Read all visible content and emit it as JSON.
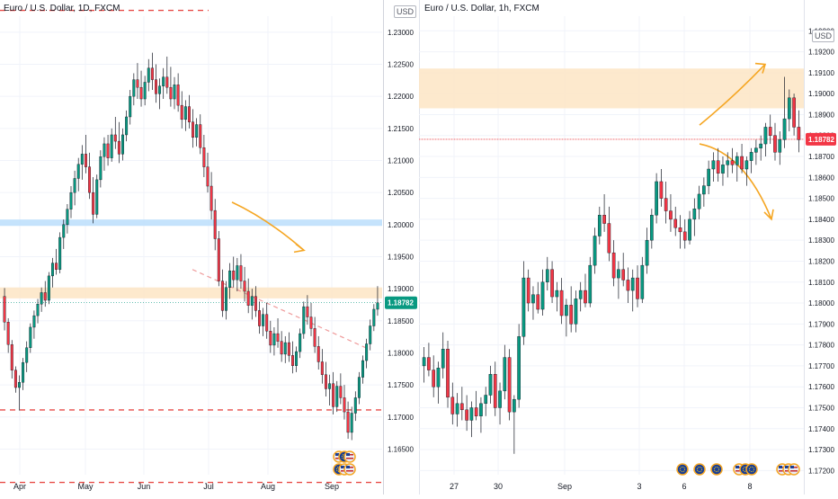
{
  "chart_data": [
    {
      "type": "candlestick",
      "title": "Euro / U.S. Dollar, 1D, FXCM",
      "currency": "USD",
      "x_ticks": [
        "Apr",
        "May",
        "Jun",
        "Jul",
        "Aug",
        "Sep"
      ],
      "y_ticks": [
        "1.23000",
        "1.22500",
        "1.22000",
        "1.21500",
        "1.21000",
        "1.20500",
        "1.20000",
        "1.19500",
        "1.19000",
        "1.18500",
        "1.18000",
        "1.17500",
        "1.17000",
        "1.16500"
      ],
      "ylim": [
        1.161,
        1.2325
      ],
      "last_price": "1.18782",
      "last_price_value": 1.18782,
      "zones": [
        {
          "from": 1.1885,
          "to": 1.1902,
          "color": "#fde5c4"
        },
        {
          "from": 1.1998,
          "to": 1.2008,
          "color": "#bbdefb"
        }
      ],
      "dashed_levels": [
        {
          "value": 1.2334,
          "color": "#e53935"
        },
        {
          "value": 1.1711,
          "color": "#e53935"
        },
        {
          "value": 1.1598,
          "color": "#e53935"
        }
      ],
      "trendline": {
        "start": [
          "Jun",
          1.193
        ],
        "end": [
          "Sep",
          1.1806
        ],
        "color": "#ef9a9a"
      },
      "arrow": {
        "from": 1.2035,
        "to": 1.196,
        "color": "#f5a623"
      },
      "ohlc": [
        [
          1.1888,
          1.1901,
          1.1835,
          1.1848
        ],
        [
          1.1848,
          1.1854,
          1.18,
          1.1813
        ],
        [
          1.1813,
          1.182,
          1.176,
          1.1773
        ],
        [
          1.1773,
          1.1779,
          1.1738,
          1.1746
        ],
        [
          1.1746,
          1.1765,
          1.171,
          1.1754
        ],
        [
          1.1754,
          1.1792,
          1.1742,
          1.1785
        ],
        [
          1.1785,
          1.1818,
          1.177,
          1.1808
        ],
        [
          1.1808,
          1.1846,
          1.18,
          1.184
        ],
        [
          1.184,
          1.1866,
          1.1822,
          1.1858
        ],
        [
          1.1858,
          1.1884,
          1.1846,
          1.1876
        ],
        [
          1.1876,
          1.1902,
          1.1864,
          1.1894
        ],
        [
          1.1894,
          1.1912,
          1.1872,
          1.1882
        ],
        [
          1.1882,
          1.1926,
          1.1876,
          1.192
        ],
        [
          1.192,
          1.1948,
          1.1902,
          1.194
        ],
        [
          1.194,
          1.1962,
          1.1922,
          1.193
        ],
        [
          1.193,
          1.1988,
          1.1924,
          1.198
        ],
        [
          1.198,
          1.2008,
          1.1962,
          1.2
        ],
        [
          1.2,
          1.2032,
          1.1986,
          1.2024
        ],
        [
          1.2024,
          1.206,
          1.201,
          1.205
        ],
        [
          1.205,
          1.2084,
          1.203,
          1.2072
        ],
        [
          1.2072,
          1.2104,
          1.2052,
          1.2094
        ],
        [
          1.2094,
          1.2124,
          1.207,
          1.211
        ],
        [
          1.211,
          1.214,
          1.208,
          1.209
        ],
        [
          1.209,
          1.2112,
          1.204,
          1.205
        ],
        [
          1.205,
          1.2074,
          1.2002,
          1.2016
        ],
        [
          1.2016,
          1.2078,
          1.201,
          1.207
        ],
        [
          1.207,
          1.2116,
          1.2058,
          1.2106
        ],
        [
          1.2106,
          1.2136,
          1.2084,
          1.2126
        ],
        [
          1.2126,
          1.214,
          1.2092,
          1.2104
        ],
        [
          1.2104,
          1.215,
          1.2098,
          1.214
        ],
        [
          1.214,
          1.2168,
          1.2118,
          1.213
        ],
        [
          1.213,
          1.216,
          1.2096,
          1.211
        ],
        [
          1.211,
          1.215,
          1.21,
          1.214
        ],
        [
          1.214,
          1.2178,
          1.213,
          1.2168
        ],
        [
          1.2168,
          1.221,
          1.2156,
          1.22
        ],
        [
          1.22,
          1.2236,
          1.2186,
          1.2226
        ],
        [
          1.2226,
          1.2252,
          1.2196,
          1.2214
        ],
        [
          1.2214,
          1.224,
          1.2184,
          1.2196
        ],
        [
          1.2196,
          1.2232,
          1.2186,
          1.2222
        ],
        [
          1.2222,
          1.2258,
          1.2208,
          1.2244
        ],
        [
          1.2244,
          1.2268,
          1.221,
          1.2226
        ],
        [
          1.2226,
          1.225,
          1.219,
          1.2204
        ],
        [
          1.2204,
          1.2228,
          1.218,
          1.2216
        ],
        [
          1.2216,
          1.2244,
          1.2196,
          1.223
        ],
        [
          1.223,
          1.2262,
          1.2204,
          1.2214
        ],
        [
          1.2214,
          1.2246,
          1.2184,
          1.2196
        ],
        [
          1.2196,
          1.223,
          1.218,
          1.2218
        ],
        [
          1.2218,
          1.2236,
          1.2176,
          1.2186
        ],
        [
          1.2186,
          1.2208,
          1.215,
          1.2164
        ],
        [
          1.2164,
          1.2194,
          1.2146,
          1.2184
        ],
        [
          1.2184,
          1.2202,
          1.215,
          1.216
        ],
        [
          1.216,
          1.218,
          1.212,
          1.2136
        ],
        [
          1.2136,
          1.2166,
          1.2122,
          1.2156
        ],
        [
          1.2156,
          1.2172,
          1.211,
          1.212
        ],
        [
          1.212,
          1.214,
          1.2074,
          1.209
        ],
        [
          1.209,
          1.2112,
          1.205,
          1.206
        ],
        [
          1.206,
          1.2082,
          1.2008,
          1.2022
        ],
        [
          1.2022,
          1.204,
          1.196,
          1.1978
        ],
        [
          1.1978,
          1.199,
          1.1904,
          1.1912
        ],
        [
          1.1912,
          1.193,
          1.1856,
          1.1866
        ],
        [
          1.1866,
          1.1912,
          1.1852,
          1.1902
        ],
        [
          1.1902,
          1.194,
          1.1884,
          1.1928
        ],
        [
          1.1928,
          1.195,
          1.1902,
          1.1914
        ],
        [
          1.1914,
          1.1948,
          1.1896,
          1.1936
        ],
        [
          1.1936,
          1.1954,
          1.19,
          1.1912
        ],
        [
          1.1912,
          1.1934,
          1.188,
          1.1896
        ],
        [
          1.1896,
          1.1916,
          1.1862,
          1.1874
        ],
        [
          1.1874,
          1.19,
          1.1852,
          1.1888
        ],
        [
          1.1888,
          1.1904,
          1.1856,
          1.1866
        ],
        [
          1.1866,
          1.188,
          1.183,
          1.1842
        ],
        [
          1.1842,
          1.187,
          1.1826,
          1.186
        ],
        [
          1.186,
          1.1878,
          1.1822,
          1.1834
        ],
        [
          1.1834,
          1.185,
          1.18,
          1.1812
        ],
        [
          1.1812,
          1.184,
          1.1796,
          1.183
        ],
        [
          1.183,
          1.1854,
          1.1808,
          1.1818
        ],
        [
          1.1818,
          1.1834,
          1.1786,
          1.1798
        ],
        [
          1.1798,
          1.1826,
          1.1784,
          1.1816
        ],
        [
          1.1816,
          1.1832,
          1.1786,
          1.1796
        ],
        [
          1.1796,
          1.1818,
          1.1768,
          1.178
        ],
        [
          1.178,
          1.181,
          1.177,
          1.1802
        ],
        [
          1.1802,
          1.1838,
          1.1792,
          1.183
        ],
        [
          1.183,
          1.188,
          1.1822,
          1.1872
        ],
        [
          1.1872,
          1.189,
          1.1844,
          1.1856
        ],
        [
          1.1856,
          1.1878,
          1.1826,
          1.1838
        ],
        [
          1.1838,
          1.1856,
          1.18,
          1.181
        ],
        [
          1.181,
          1.1826,
          1.1774,
          1.1786
        ],
        [
          1.1786,
          1.1806,
          1.1752,
          1.1766
        ],
        [
          1.1766,
          1.1786,
          1.1732,
          1.1744
        ],
        [
          1.1744,
          1.1766,
          1.1718,
          1.1752
        ],
        [
          1.1752,
          1.177,
          1.1704,
          1.1716
        ],
        [
          1.1716,
          1.1756,
          1.1708,
          1.1748
        ],
        [
          1.1748,
          1.1768,
          1.172,
          1.173
        ],
        [
          1.173,
          1.175,
          1.1696,
          1.1708
        ],
        [
          1.1708,
          1.1724,
          1.1666,
          1.1676
        ],
        [
          1.1676,
          1.1716,
          1.1664,
          1.1706
        ],
        [
          1.1706,
          1.174,
          1.1694,
          1.173
        ],
        [
          1.173,
          1.177,
          1.172,
          1.1762
        ],
        [
          1.1762,
          1.1796,
          1.1752,
          1.1788
        ],
        [
          1.1788,
          1.1822,
          1.1776,
          1.1814
        ],
        [
          1.1814,
          1.1852,
          1.1804,
          1.1842
        ],
        [
          1.1842,
          1.1876,
          1.1834,
          1.1868
        ],
        [
          1.1868,
          1.1904,
          1.1858,
          1.1878
        ]
      ]
    },
    {
      "type": "candlestick",
      "title": "Euro / U.S. Dollar, 1h, FXCM",
      "currency": "USD",
      "x_ticks": [
        "27",
        "30",
        "Sep",
        "3",
        "6",
        "8"
      ],
      "y_ticks": [
        "1.19300",
        "1.19200",
        "1.19100",
        "1.19000",
        "1.18900",
        "1.18800",
        "1.18700",
        "1.18600",
        "1.18500",
        "1.18400",
        "1.18300",
        "1.18200",
        "1.18100",
        "1.18000",
        "1.17900",
        "1.17800",
        "1.17700",
        "1.17600",
        "1.17500",
        "1.17400",
        "1.17300",
        "1.17200"
      ],
      "ylim": [
        1.1718,
        1.1937
      ],
      "last_price": "1.18782",
      "last_price_value": 1.18782,
      "zones": [
        {
          "from": 1.1893,
          "to": 1.1912,
          "color": "#fde5c4"
        }
      ],
      "dashed_levels": [
        {
          "value": 1.18782,
          "color": "#ef9a9a"
        }
      ],
      "arrows": [
        {
          "from": 1.1885,
          "to": 1.1914,
          "color": "#f5a623"
        },
        {
          "from": 1.1876,
          "to": 1.184,
          "color": "#f5a623"
        }
      ],
      "ohlc": [
        [
          1.177,
          1.1779,
          1.1762,
          1.1774
        ],
        [
          1.1774,
          1.1781,
          1.1765,
          1.1768
        ],
        [
          1.1768,
          1.1775,
          1.1755,
          1.176
        ],
        [
          1.176,
          1.1772,
          1.1752,
          1.1769
        ],
        [
          1.1769,
          1.1786,
          1.1764,
          1.1778
        ],
        [
          1.1778,
          1.1782,
          1.175,
          1.1755
        ],
        [
          1.1755,
          1.1762,
          1.1742,
          1.1747
        ],
        [
          1.1747,
          1.1757,
          1.1741,
          1.1752
        ],
        [
          1.1752,
          1.176,
          1.1744,
          1.1749
        ],
        [
          1.1749,
          1.1756,
          1.1739,
          1.1744
        ],
        [
          1.1744,
          1.1753,
          1.1736,
          1.175
        ],
        [
          1.175,
          1.1758,
          1.1744,
          1.1746
        ],
        [
          1.1746,
          1.1755,
          1.1738,
          1.1752
        ],
        [
          1.1752,
          1.176,
          1.1746,
          1.1756
        ],
        [
          1.1756,
          1.177,
          1.1752,
          1.1766
        ],
        [
          1.1766,
          1.1772,
          1.1746,
          1.175
        ],
        [
          1.175,
          1.1762,
          1.1742,
          1.1758
        ],
        [
          1.1758,
          1.178,
          1.1754,
          1.1774
        ],
        [
          1.1774,
          1.1778,
          1.1744,
          1.1748
        ],
        [
          1.1748,
          1.1756,
          1.1728,
          1.1754
        ],
        [
          1.1754,
          1.179,
          1.175,
          1.1784
        ],
        [
          1.1784,
          1.182,
          1.178,
          1.1812
        ],
        [
          1.1812,
          1.1816,
          1.1796,
          1.18
        ],
        [
          1.18,
          1.1808,
          1.1792,
          1.1804
        ],
        [
          1.1804,
          1.181,
          1.1795,
          1.1797
        ],
        [
          1.1797,
          1.1816,
          1.1794,
          1.181
        ],
        [
          1.181,
          1.1822,
          1.1806,
          1.1816
        ],
        [
          1.1816,
          1.182,
          1.18,
          1.1803
        ],
        [
          1.1803,
          1.181,
          1.1796,
          1.1806
        ],
        [
          1.1806,
          1.1812,
          1.179,
          1.1794
        ],
        [
          1.1794,
          1.1802,
          1.1784,
          1.1799
        ],
        [
          1.1799,
          1.1808,
          1.1786,
          1.179
        ],
        [
          1.179,
          1.1806,
          1.1786,
          1.1802
        ],
        [
          1.1802,
          1.181,
          1.1796,
          1.1806
        ],
        [
          1.1806,
          1.1814,
          1.1798,
          1.18
        ],
        [
          1.18,
          1.1822,
          1.1798,
          1.1818
        ],
        [
          1.1818,
          1.1836,
          1.1814,
          1.1832
        ],
        [
          1.1832,
          1.1846,
          1.1828,
          1.1842
        ],
        [
          1.1842,
          1.1852,
          1.1834,
          1.1838
        ],
        [
          1.1838,
          1.1846,
          1.182,
          1.1824
        ],
        [
          1.1824,
          1.183,
          1.1808,
          1.1812
        ],
        [
          1.1812,
          1.182,
          1.1802,
          1.1816
        ],
        [
          1.1816,
          1.1824,
          1.1808,
          1.1811
        ],
        [
          1.1811,
          1.1817,
          1.18,
          1.1806
        ],
        [
          1.1806,
          1.1816,
          1.1796,
          1.1812
        ],
        [
          1.1812,
          1.1818,
          1.1798,
          1.1802
        ],
        [
          1.1802,
          1.1822,
          1.18,
          1.1818
        ],
        [
          1.1818,
          1.1836,
          1.1814,
          1.183
        ],
        [
          1.183,
          1.1845,
          1.1826,
          1.1842
        ],
        [
          1.1842,
          1.1862,
          1.1838,
          1.1858
        ],
        [
          1.1858,
          1.1864,
          1.1846,
          1.185
        ],
        [
          1.185,
          1.1858,
          1.1838,
          1.1844
        ],
        [
          1.1844,
          1.1852,
          1.1834,
          1.184
        ],
        [
          1.184,
          1.1846,
          1.1832,
          1.1836
        ],
        [
          1.1836,
          1.1842,
          1.1826,
          1.1834
        ],
        [
          1.1834,
          1.184,
          1.1826,
          1.183
        ],
        [
          1.183,
          1.1844,
          1.1828,
          1.184
        ],
        [
          1.184,
          1.185,
          1.1832,
          1.1845
        ],
        [
          1.1845,
          1.1856,
          1.184,
          1.1852
        ],
        [
          1.1852,
          1.186,
          1.1846,
          1.1856
        ],
        [
          1.1856,
          1.1868,
          1.1852,
          1.1864
        ],
        [
          1.1864,
          1.1872,
          1.1858,
          1.1868
        ],
        [
          1.1868,
          1.1874,
          1.1858,
          1.1862
        ],
        [
          1.1862,
          1.187,
          1.1856,
          1.1866
        ],
        [
          1.1866,
          1.1872,
          1.186,
          1.1868
        ],
        [
          1.1868,
          1.1874,
          1.1862,
          1.1866
        ],
        [
          1.1866,
          1.1872,
          1.1858,
          1.187
        ],
        [
          1.187,
          1.1876,
          1.1862,
          1.1864
        ],
        [
          1.1864,
          1.187,
          1.1856,
          1.1868
        ],
        [
          1.1868,
          1.1874,
          1.1862,
          1.1872
        ],
        [
          1.1872,
          1.1878,
          1.1866,
          1.1874
        ],
        [
          1.1874,
          1.188,
          1.1868,
          1.1876
        ],
        [
          1.1876,
          1.1886,
          1.187,
          1.1884
        ],
        [
          1.1884,
          1.189,
          1.1876,
          1.188
        ],
        [
          1.188,
          1.1886,
          1.1868,
          1.1872
        ],
        [
          1.1872,
          1.1882,
          1.1866,
          1.1878
        ],
        [
          1.1878,
          1.1908,
          1.1874,
          1.1888
        ],
        [
          1.1888,
          1.1902,
          1.1882,
          1.1898
        ],
        [
          1.1898,
          1.19,
          1.188,
          1.1884
        ],
        [
          1.1884,
          1.1892,
          1.1872,
          1.1878
        ]
      ]
    }
  ],
  "event_badges": {
    "left": [
      "EU",
      "US",
      "EU",
      "US"
    ],
    "right": [
      "EU",
      "EU",
      "EU",
      "US",
      "EU",
      "US",
      "US"
    ]
  }
}
